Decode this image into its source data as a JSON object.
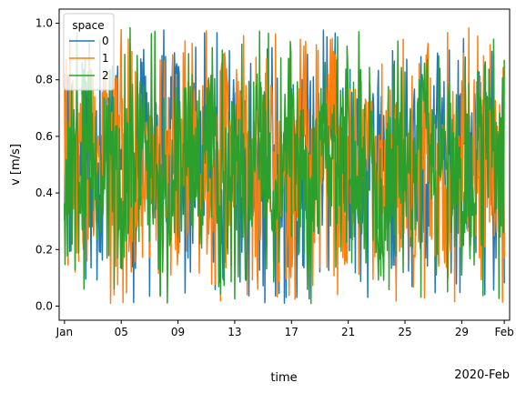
{
  "chart_data": {
    "type": "line",
    "title": "",
    "xlabel": "time",
    "ylabel": "v [m/s]",
    "x_offset_label": "2020-Feb",
    "xlim": [
      "2019-12-31T15:00",
      "2020-02-01T09:00"
    ],
    "ylim": [
      -0.05,
      1.05
    ],
    "x_ticks": [
      {
        "date": "2020-01-01",
        "label": "Jan"
      },
      {
        "date": "2020-01-05",
        "label": "05"
      },
      {
        "date": "2020-01-09",
        "label": "09"
      },
      {
        "date": "2020-01-13",
        "label": "13"
      },
      {
        "date": "2020-01-17",
        "label": "17"
      },
      {
        "date": "2020-01-21",
        "label": "21"
      },
      {
        "date": "2020-01-25",
        "label": "25"
      },
      {
        "date": "2020-01-29",
        "label": "29"
      },
      {
        "date": "2020-02-01",
        "label": "Feb"
      }
    ],
    "y_ticks": [
      {
        "value": 0.0,
        "label": "0.0"
      },
      {
        "value": 0.2,
        "label": "0.2"
      },
      {
        "value": 0.4,
        "label": "0.4"
      },
      {
        "value": 0.6,
        "label": "0.6"
      },
      {
        "value": 0.8,
        "label": "0.8"
      },
      {
        "value": 1.0,
        "label": "1.0"
      }
    ],
    "legend": {
      "title": "space",
      "placement": "top-left"
    },
    "grid": false,
    "series": [
      {
        "name": "0",
        "color": "#1f77b4",
        "x_start": "2020-01-01T00:00",
        "x_end": "2020-02-01T00:00",
        "n_points": 745,
        "values": [
          0.62,
          0.35,
          0.91,
          0.05,
          0.71,
          0.44,
          0.12,
          0.86,
          0.57,
          0.28,
          0.95,
          0.18,
          0.68,
          0.41,
          0.02,
          0.79,
          0.53,
          0.24,
          0.88,
          0.33,
          0.64,
          0.09,
          0.76,
          0.47,
          0.98,
          0.21,
          0.59,
          0.37,
          0.83,
          0.15,
          0.49,
          0.72,
          0.06,
          0.92,
          0.31,
          0.66,
          0.43,
          0.81,
          0.19,
          0.55
        ]
      },
      {
        "name": "1",
        "color": "#ff7f0e",
        "x_start": "2020-01-01T00:00",
        "x_end": "2020-02-01T00:00",
        "n_points": 745,
        "values": [
          0.27,
          0.84,
          0.13,
          0.69,
          0.46,
          0.97,
          0.08,
          0.58,
          0.32,
          0.89,
          0.22,
          0.74,
          0.51,
          0.04,
          0.93,
          0.38,
          0.65,
          0.16,
          0.82,
          0.45,
          0.01,
          0.77,
          0.29,
          0.61,
          0.96,
          0.11,
          0.54,
          0.87,
          0.25,
          0.7,
          0.39,
          0.03,
          0.91,
          0.48,
          0.14,
          0.8,
          0.34,
          0.99,
          0.2,
          0.82
        ]
      },
      {
        "name": "2",
        "color": "#2ca02c",
        "x_start": "2020-01-01T00:00",
        "x_end": "2020-02-01T00:00",
        "n_points": 745,
        "values": [
          0.07,
          0.52,
          0.93,
          0.3,
          0.75,
          0.17,
          0.63,
          0.99,
          0.4,
          0.1,
          0.85,
          0.56,
          0.23,
          0.97,
          0.36,
          0.7,
          0.03,
          0.8,
          0.48,
          0.26,
          0.92,
          0.6,
          0.14,
          0.73,
          0.42,
          0.98,
          0.19,
          0.67,
          0.05,
          0.89,
          0.5,
          0.34,
          0.95,
          0.12,
          0.78,
          0.45,
          0.2,
          0.94,
          0.61,
          0.33
        ]
      }
    ]
  }
}
